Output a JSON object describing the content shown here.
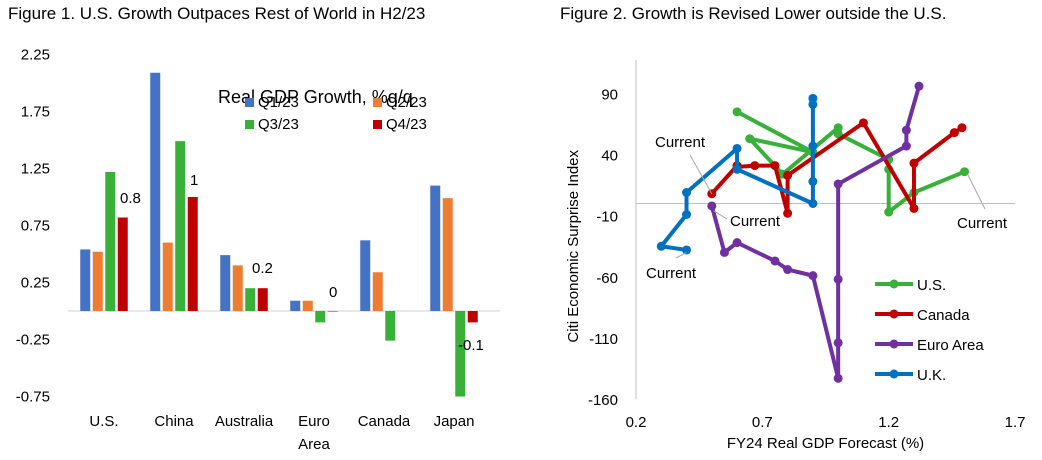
{
  "figures": {
    "fig1_title": "Figure 1. U.S. Growth Outpaces Rest of World in H2/23",
    "fig2_title": "Figure 2. Growth is Revised Lower outside the U.S."
  },
  "chart_data": [
    {
      "type": "bar",
      "title": "Figure 1. U.S. Growth Outpaces Rest of World in H2/23",
      "legend_title": "Real GDP Growth, %q/q",
      "legend_position": "top-right",
      "categories": [
        "U.S.",
        "China",
        "Australia",
        "Euro Area",
        "Canada",
        "Japan"
      ],
      "series": [
        {
          "name": "Q1/23",
          "color": "#4472C4",
          "values": [
            0.54,
            2.09,
            0.49,
            0.09,
            0.62,
            1.1
          ]
        },
        {
          "name": "Q2/23",
          "color": "#ED7D31",
          "values": [
            0.52,
            0.6,
            0.4,
            0.09,
            0.34,
            0.99
          ]
        },
        {
          "name": "Q3/23",
          "color": "#38B03A",
          "values": [
            1.22,
            1.49,
            0.2,
            -0.1,
            -0.26,
            -0.75
          ]
        },
        {
          "name": "Q4/23",
          "color": "#C00000",
          "values": [
            0.82,
            1.0,
            0.2,
            0.0,
            null,
            -0.1
          ]
        }
      ],
      "data_labels": [
        {
          "category": "U.S.",
          "text": "0.8"
        },
        {
          "category": "China",
          "text": "1"
        },
        {
          "category": "Australia",
          "text": "0.2"
        },
        {
          "category": "Euro Area",
          "text": "0"
        },
        {
          "category": "Japan",
          "text": "-0.1"
        }
      ],
      "yticks": [
        "2.25",
        "1.75",
        "1.25",
        "0.75",
        "0.25",
        "-0.25",
        "-0.75"
      ],
      "ylim": [
        -0.8,
        2.3
      ],
      "xlabel": "",
      "ylabel": "",
      "grid": false
    },
    {
      "type": "line",
      "title": "Figure 2. Growth is Revised Lower outside the U.S.",
      "xlabel": "FY24 Real GDP Forecast (%)",
      "ylabel": "Citi Economic Surprise Index",
      "xlim": [
        0.2,
        1.7
      ],
      "ylim": [
        -160,
        115
      ],
      "xticks": [
        "0.2",
        "0.7",
        "1.2",
        "1.7"
      ],
      "yticks": [
        "90",
        "40",
        "-10",
        "-60",
        "-110",
        "-160"
      ],
      "legend_position": "bottom-right",
      "annotation": "Current",
      "series": [
        {
          "name": "U.S.",
          "color": "#38B03A",
          "x": [
            0.6,
            0.9,
            0.65,
            0.78,
            1.0,
            1.0,
            1.2,
            1.2,
            1.2,
            1.3,
            1.5
          ],
          "y": [
            75,
            42,
            53,
            24,
            62,
            57,
            36,
            28,
            -7,
            9,
            26
          ]
        },
        {
          "name": "Canada",
          "color": "#C00000",
          "x": [
            1.49,
            1.46,
            1.3,
            1.3,
            1.1,
            0.8,
            0.8,
            0.75,
            0.67,
            0.6,
            0.6,
            0.5
          ],
          "y": [
            62,
            58,
            33,
            -4,
            66,
            23,
            -8,
            31,
            31,
            30,
            31,
            8
          ]
        },
        {
          "name": "Euro Area",
          "color": "#7030A0",
          "x": [
            1.32,
            1.27,
            1.27,
            1.0,
            1.0,
            1.0,
            1.0,
            0.9,
            0.8,
            0.75,
            0.6,
            0.55,
            0.5
          ],
          "y": [
            96,
            60,
            47,
            16,
            -62,
            -114,
            -143,
            -59,
            -54,
            -47,
            -32,
            -40,
            -2
          ]
        },
        {
          "name": "U.K.",
          "color": "#0070C0",
          "x": [
            0.9,
            0.9,
            0.9,
            0.9,
            0.9,
            0.6,
            0.6,
            0.4,
            0.4,
            0.3,
            0.4
          ],
          "y": [
            86,
            81,
            47,
            18,
            0,
            28,
            45,
            9,
            -9,
            -35,
            -38
          ]
        }
      ],
      "current_labels": [
        {
          "series": "U.S.",
          "text": "Current"
        },
        {
          "series": "Canada",
          "text": "Current"
        },
        {
          "series": "Euro Area",
          "text": "Current"
        },
        {
          "series": "U.K.",
          "text": "Current"
        }
      ],
      "grid": false
    }
  ]
}
